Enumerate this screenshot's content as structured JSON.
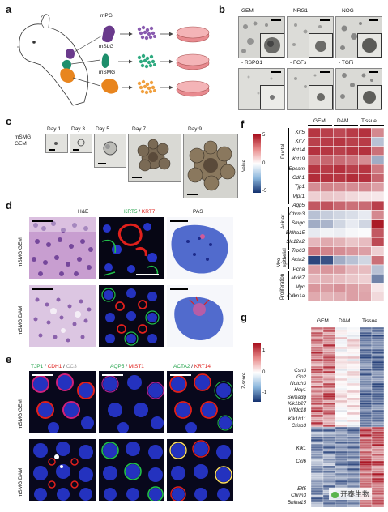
{
  "panels": {
    "a": "a",
    "b": "b",
    "c": "c",
    "d": "d",
    "e": "e",
    "f": "f",
    "g": "g"
  },
  "panel_a": {
    "glands": [
      "mPG",
      "mSLG",
      "mSMG"
    ],
    "colors": {
      "mPG": "#6a3a8c",
      "mSLG": "#1e8f6c",
      "mSMG": "#e8851e",
      "dish": "#e88a8f"
    }
  },
  "panel_b": {
    "conditions": [
      "GEM",
      "- NRG1",
      "- NOG",
      "- RSPO1",
      "- FGFs",
      "- TGFi"
    ]
  },
  "panel_c": {
    "row_label": "mSMG\nGEM",
    "days": [
      "Day 1",
      "Day 3",
      "Day 5",
      "Day 7",
      "Day 9"
    ]
  },
  "panel_d": {
    "col_he": "H&E",
    "col_krt5": "KRT5",
    "sep": " / ",
    "col_krt7": "KRT7",
    "col_pas": "PAS",
    "rows": [
      "mSMG GEM",
      "mSMG DAM"
    ],
    "colors": {
      "KRT5": "#22a24a",
      "KRT7": "#e0201c"
    }
  },
  "panel_e": {
    "headers": [
      [
        {
          "t": "TJP1",
          "c": "#22a24a"
        },
        {
          "t": " / ",
          "c": "#111"
        },
        {
          "t": "CDH1",
          "c": "#e0201c"
        },
        {
          "t": " / ",
          "c": "#111"
        },
        {
          "t": "CC3",
          "c": "#999999"
        }
      ],
      [
        {
          "t": "AQP5",
          "c": "#22a24a"
        },
        {
          "t": " / ",
          "c": "#111"
        },
        {
          "t": "MIST1",
          "c": "#e0201c"
        }
      ],
      [
        {
          "t": "ACTA2",
          "c": "#22a24a"
        },
        {
          "t": " / ",
          "c": "#111"
        },
        {
          "t": "KRT14",
          "c": "#e0201c"
        }
      ]
    ],
    "rows": [
      "mSMG GEM",
      "mSMG DAM"
    ]
  },
  "panel_f": {
    "cols": [
      "GEM",
      "DAM",
      "Tissue"
    ],
    "legend_title": "Value",
    "legend_ticks": [
      "5",
      "0",
      "-5"
    ],
    "groups": [
      "Ductal",
      "Acinar",
      "Myo-\nepithelial",
      "Proliferation"
    ],
    "genes": [
      "Krt5",
      "Krt7",
      "Krt14",
      "Krt19",
      "Epcam",
      "Cdh1",
      "Tjp1",
      "Vlpr1",
      "Aqp5",
      "Chrm3",
      "Smgc",
      "Bhlha15",
      "Slc12a2",
      "Trp63",
      "Acta2",
      "Pcna",
      "Mki67",
      "Myc",
      "Cdkn1a"
    ],
    "values": [
      [
        4.2,
        4.0,
        3.8,
        4.1,
        4.3,
        2.5
      ],
      [
        4.0,
        4.1,
        4.2,
        4.0,
        4.1,
        -1.5
      ],
      [
        4.3,
        4.2,
        4.0,
        4.2,
        4.3,
        3.0
      ],
      [
        3.0,
        3.2,
        3.1,
        2.9,
        2.4,
        -2.0
      ],
      [
        4.2,
        4.1,
        4.3,
        4.0,
        4.2,
        2.8
      ],
      [
        4.4,
        4.3,
        4.2,
        4.4,
        4.3,
        3.2
      ],
      [
        2.4,
        2.6,
        2.5,
        2.4,
        2.5,
        2.0
      ],
      [
        1.0,
        1.2,
        1.1,
        0.8,
        0.6,
        0.5
      ],
      [
        3.5,
        3.6,
        3.2,
        3.0,
        3.1,
        4.0
      ],
      [
        -1.5,
        -1.2,
        -1.0,
        -0.8,
        -0.5,
        2.5
      ],
      [
        -2.0,
        -1.8,
        -1.0,
        -0.5,
        -1.0,
        4.8
      ],
      [
        -0.5,
        -0.3,
        -0.4,
        -0.2,
        -0.1,
        3.5
      ],
      [
        1.5,
        1.8,
        1.6,
        1.2,
        1.4,
        3.8
      ],
      [
        2.8,
        2.6,
        2.4,
        2.2,
        2.0,
        1.0
      ],
      [
        -4.5,
        -4.2,
        -2.0,
        -1.5,
        -1.0,
        3.0
      ],
      [
        2.0,
        2.2,
        2.1,
        1.5,
        1.4,
        -1.5
      ],
      [
        1.5,
        1.6,
        1.4,
        1.2,
        1.0,
        -3.0
      ],
      [
        2.2,
        2.1,
        2.3,
        2.0,
        1.8,
        0.5
      ],
      [
        1.8,
        1.6,
        1.7,
        2.0,
        1.9,
        0.8
      ]
    ]
  },
  "panel_g": {
    "cols": [
      "GEM",
      "DAM",
      "Tissue"
    ],
    "legend_title": "Z-score",
    "legend_ticks": [
      "1",
      "0",
      "-1"
    ],
    "genes": [
      "Csn3",
      "Gp2",
      "Notch3",
      "Hey1",
      "Sema3g",
      "Klk1b27",
      "Wfdc18",
      "Klk1b11",
      "Crisp3",
      "Klk1",
      "Ccl6",
      "Elf5",
      "Chrm3",
      "Bhlha15"
    ],
    "watermark": "开泰生物"
  }
}
